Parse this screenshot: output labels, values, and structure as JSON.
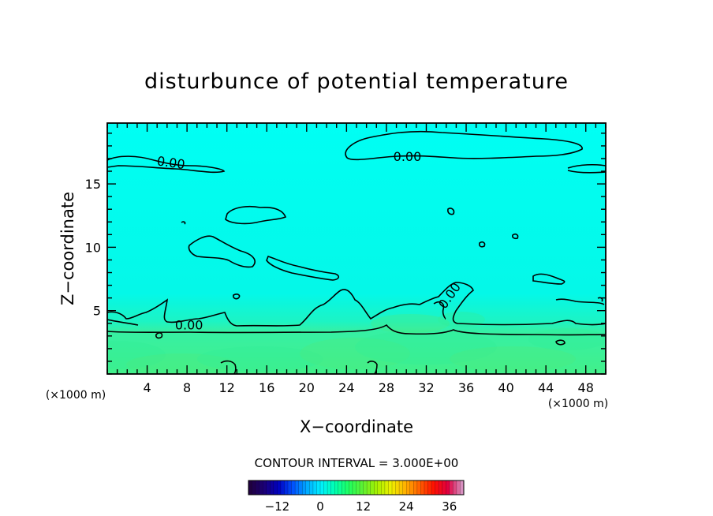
{
  "chart_data": {
    "type": "contour",
    "title": "disturbunce of potential temperature",
    "xlabel": "X−coordinate",
    "ylabel": "Z−coordinate",
    "x_unit": "(×1000 m)",
    "y_unit": "(×1000 m)",
    "xlim": [
      0,
      50
    ],
    "ylim": [
      0,
      19.8
    ],
    "x_ticks": [
      4,
      8,
      12,
      16,
      20,
      24,
      28,
      32,
      36,
      40,
      44,
      48
    ],
    "y_ticks": [
      5,
      10,
      15
    ],
    "contour_interval_text": "CONTOUR INTERVAL = 3.000E+00",
    "contour_labels": [
      {
        "text": "0.00",
        "x": 6.4,
        "y": 16.7,
        "angle": 8
      },
      {
        "text": "0.00",
        "x": 30.1,
        "y": 17.2,
        "angle": 0
      },
      {
        "text": "0.00",
        "x": 8.2,
        "y": 3.9,
        "angle": 0
      },
      {
        "text": "0.00",
        "x": 34.3,
        "y": 6.2,
        "angle": -55
      }
    ],
    "colorbar": {
      "min": -20,
      "max": 40,
      "tick_values": [
        -12,
        0,
        12,
        24,
        36
      ],
      "tick_labels": [
        "−12",
        "0",
        "12",
        "24",
        "36"
      ],
      "colors": [
        "#200040",
        "#1b0078",
        "#0000c0",
        "#0050ff",
        "#00a8ff",
        "#00f0ff",
        "#00ffb0",
        "#20ff60",
        "#60f030",
        "#a8f000",
        "#f0f000",
        "#ffb000",
        "#ff6000",
        "#ff1000",
        "#e00040",
        "#d890c0"
      ]
    },
    "field_colors": {
      "upper": "#00fbf0",
      "lower": "#38f08c",
      "band": "#3ef0a0"
    }
  }
}
